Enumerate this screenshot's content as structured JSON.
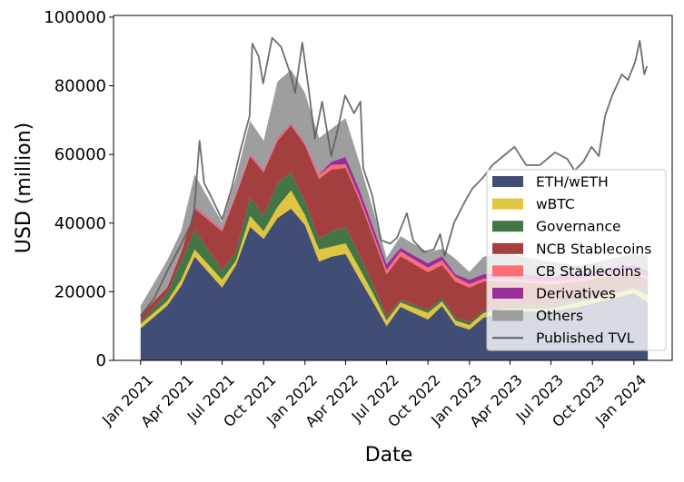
{
  "chart_data": {
    "type": "area",
    "stacked": true,
    "xlabel": "Date",
    "ylabel": "USD (million)",
    "xlim": [
      "2020-11-02",
      "2024-03-26"
    ],
    "ylim": [
      0,
      100500
    ],
    "x_ticks": [
      {
        "date": "2021-01-01",
        "label": "Jan 2021"
      },
      {
        "date": "2021-04-01",
        "label": "Apr 2021"
      },
      {
        "date": "2021-07-01",
        "label": "Jul 2021"
      },
      {
        "date": "2021-10-01",
        "label": "Oct 2021"
      },
      {
        "date": "2022-01-01",
        "label": "Jan 2022"
      },
      {
        "date": "2022-04-01",
        "label": "Apr 2022"
      },
      {
        "date": "2022-07-01",
        "label": "Jul 2022"
      },
      {
        "date": "2022-10-01",
        "label": "Oct 2022"
      },
      {
        "date": "2023-01-01",
        "label": "Jan 2023"
      },
      {
        "date": "2023-04-01",
        "label": "Apr 2023"
      },
      {
        "date": "2023-07-01",
        "label": "Jul 2023"
      },
      {
        "date": "2023-10-01",
        "label": "Oct 2023"
      },
      {
        "date": "2024-01-01",
        "label": "Jan 2024"
      }
    ],
    "y_ticks": [
      0,
      20000,
      40000,
      60000,
      80000,
      100000
    ],
    "grid": false,
    "legend_position": "lower-right",
    "x": [
      "2021-01-01",
      "2021-03-01",
      "2021-04-01",
      "2021-05-01",
      "2021-07-01",
      "2021-08-01",
      "2021-09-01",
      "2021-10-01",
      "2021-11-01",
      "2021-12-01",
      "2022-01-01",
      "2022-02-01",
      "2022-03-01",
      "2022-04-01",
      "2022-05-01",
      "2022-06-01",
      "2022-07-01",
      "2022-08-01",
      "2022-09-01",
      "2022-10-01",
      "2022-11-01",
      "2022-12-01",
      "2023-01-01",
      "2023-02-01",
      "2023-03-20",
      "2023-06-29",
      "2023-09-01",
      "2024-01-01",
      "2024-02-01"
    ],
    "series": [
      {
        "name": "ETH/wETH",
        "color": "#404d75",
        "values": [
          9300,
          15900,
          21700,
          30200,
          21200,
          27800,
          38900,
          35400,
          41500,
          44200,
          39400,
          28800,
          30200,
          31000,
          24000,
          17000,
          10000,
          15600,
          13700,
          11900,
          15900,
          10300,
          9000,
          12400,
          14300,
          14300,
          15600,
          19600,
          16900
        ]
      },
      {
        "name": "wBTC",
        "color": "#e0c540",
        "values": [
          1300,
          1300,
          1800,
          2100,
          2300,
          1300,
          3200,
          2200,
          3200,
          5300,
          2900,
          3500,
          2900,
          3100,
          3000,
          2500,
          1600,
          1300,
          1600,
          1900,
          1300,
          1300,
          1300,
          1400,
          800,
          700,
          1300,
          1300,
          2100
        ]
      },
      {
        "name": "Governance",
        "color": "#437546",
        "values": [
          500,
          2400,
          5300,
          5800,
          2700,
          2600,
          5300,
          4700,
          6900,
          5300,
          4000,
          3100,
          4500,
          4800,
          4000,
          2500,
          1100,
          800,
          800,
          800,
          1100,
          800,
          800,
          800,
          800,
          900,
          800,
          800,
          1400
        ]
      },
      {
        "name": "NCB Stablecoins",
        "color": "#a33f3f",
        "values": [
          2100,
          1600,
          2700,
          6100,
          11400,
          16400,
          12100,
          12500,
          12400,
          13700,
          16400,
          17500,
          18000,
          17200,
          16000,
          14000,
          12400,
          12700,
          11900,
          11100,
          9500,
          10600,
          10100,
          8400,
          7100,
          6300,
          5300,
          4000,
          3100
        ]
      },
      {
        "name": "CB Stablecoins",
        "color": "#fc6d76",
        "values": [
          300,
          200,
          300,
          500,
          500,
          600,
          500,
          500,
          800,
          300,
          500,
          1100,
          1300,
          1000,
          1000,
          1000,
          1200,
          1300,
          1300,
          1300,
          1300,
          1300,
          1000,
          800,
          800,
          800,
          800,
          800,
          800
        ]
      },
      {
        "name": "Derivatives",
        "color": "#9a2e99",
        "values": [
          0,
          0,
          0,
          200,
          200,
          200,
          200,
          200,
          200,
          200,
          200,
          300,
          1000,
          2200,
          2000,
          2000,
          1700,
          1100,
          1200,
          1300,
          1300,
          800,
          1300,
          1300,
          1900,
          1300,
          1900,
          1300,
          1700
        ]
      },
      {
        "name": "Others",
        "color": "#9e9e9e",
        "values": [
          2400,
          7700,
          5800,
          9300,
          1900,
          4500,
          9600,
          8500,
          16200,
          15700,
          14400,
          10500,
          9600,
          11300,
          8000,
          5000,
          1900,
          3400,
          3300,
          3200,
          2100,
          4500,
          2200,
          5100,
          5300,
          4500,
          1800,
          3200,
          4400
        ]
      }
    ],
    "line_series": {
      "name": "Published TVL",
      "color": "#5e5e5e",
      "points": [
        [
          "2021-01-01",
          13000
        ],
        [
          "2021-01-31",
          18000
        ],
        [
          "2021-03-02",
          26200
        ],
        [
          "2021-04-02",
          34000
        ],
        [
          "2021-04-22",
          39400
        ],
        [
          "2021-04-30",
          43700
        ],
        [
          "2021-05-12",
          64000
        ],
        [
          "2021-05-22",
          51600
        ],
        [
          "2021-06-05",
          48100
        ],
        [
          "2021-07-01",
          41000
        ],
        [
          "2021-07-22",
          50000
        ],
        [
          "2021-08-11",
          61400
        ],
        [
          "2021-08-31",
          71200
        ],
        [
          "2021-09-06",
          92300
        ],
        [
          "2021-09-20",
          88600
        ],
        [
          "2021-09-30",
          80700
        ],
        [
          "2021-10-20",
          94000
        ],
        [
          "2021-11-09",
          91300
        ],
        [
          "2021-11-30",
          83300
        ],
        [
          "2021-12-10",
          78000
        ],
        [
          "2021-12-26",
          92600
        ],
        [
          "2022-01-09",
          79000
        ],
        [
          "2022-01-23",
          64600
        ],
        [
          "2022-02-08",
          75400
        ],
        [
          "2022-02-28",
          59500
        ],
        [
          "2022-03-15",
          67500
        ],
        [
          "2022-03-31",
          77200
        ],
        [
          "2022-04-20",
          72000
        ],
        [
          "2022-05-04",
          75400
        ],
        [
          "2022-05-10",
          56100
        ],
        [
          "2022-05-30",
          48100
        ],
        [
          "2022-06-19",
          35000
        ],
        [
          "2022-07-09",
          34000
        ],
        [
          "2022-07-24",
          35700
        ],
        [
          "2022-08-15",
          42900
        ],
        [
          "2022-08-29",
          35000
        ],
        [
          "2022-09-22",
          31500
        ],
        [
          "2022-10-14",
          32300
        ],
        [
          "2022-10-28",
          36800
        ],
        [
          "2022-11-07",
          30400
        ],
        [
          "2022-11-28",
          40200
        ],
        [
          "2022-12-22",
          46300
        ],
        [
          "2023-01-07",
          50000
        ],
        [
          "2023-02-01",
          53400
        ],
        [
          "2023-02-21",
          56900
        ],
        [
          "2023-03-17",
          59500
        ],
        [
          "2023-04-11",
          62200
        ],
        [
          "2023-05-07",
          56900
        ],
        [
          "2023-06-06",
          56900
        ],
        [
          "2023-07-10",
          60600
        ],
        [
          "2023-08-06",
          58700
        ],
        [
          "2023-08-22",
          55300
        ],
        [
          "2023-09-11",
          57900
        ],
        [
          "2023-09-29",
          62200
        ],
        [
          "2023-10-15",
          59500
        ],
        [
          "2023-10-29",
          71200
        ],
        [
          "2023-11-14",
          77200
        ],
        [
          "2023-12-05",
          83300
        ],
        [
          "2023-12-19",
          81700
        ],
        [
          "2024-01-04",
          87000
        ],
        [
          "2024-01-14",
          93100
        ],
        [
          "2024-01-24",
          83300
        ],
        [
          "2024-01-30",
          85700
        ]
      ]
    }
  }
}
